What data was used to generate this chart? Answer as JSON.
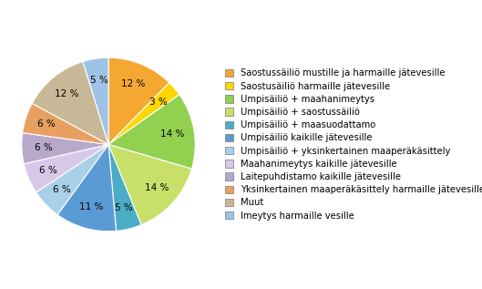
{
  "slices": [
    {
      "label": "Saostussäiliö mustille ja harmaille jätevesille",
      "pct": 13,
      "color": "#F4A832"
    },
    {
      "label": "Saostusäiliö harmaille jätevesille",
      "pct": 3,
      "color": "#FFD700"
    },
    {
      "label": "Umpisäiliö + maahanimeytys",
      "pct": 15,
      "color": "#92D050"
    },
    {
      "label": "Umpisäiliö + saostussäiliö",
      "pct": 15,
      "color": "#C8E06A"
    },
    {
      "label": "Umpisäiliö + maasuodattamo",
      "pct": 5,
      "color": "#4BACC6"
    },
    {
      "label": "Umpisäiliö kaikille jätevesille",
      "pct": 12,
      "color": "#5B9BD5"
    },
    {
      "label": "Umpisäiliö + yksinkertainen maaperäkäsittely",
      "pct": 6,
      "color": "#A8D0E8"
    },
    {
      "label": "Maahanimeytys kaikille jätevesille",
      "pct": 6,
      "color": "#D8C8E8"
    },
    {
      "label": "Laitepuhdistamo kaikille jätevesille",
      "pct": 6,
      "color": "#B8A8CC"
    },
    {
      "label": "Yksinkertainen maaperäkäsittely harmaille jätevesille",
      "pct": 6,
      "color": "#E8A060"
    },
    {
      "label": "Muut",
      "pct": 13,
      "color": "#C8B898"
    },
    {
      "label": "Imeytys harmaille vesille",
      "pct": 5,
      "color": "#9DC3E6"
    }
  ],
  "start_angle": 90,
  "legend_fontsize": 7.2,
  "autopct_fontsize": 7.5,
  "figsize": [
    5.29,
    3.17
  ],
  "dpi": 100
}
